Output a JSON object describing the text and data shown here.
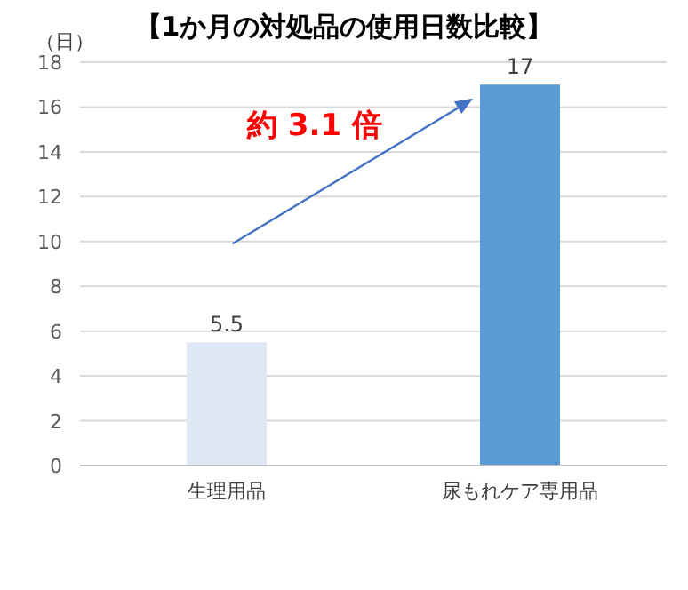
{
  "chart_data": {
    "type": "bar",
    "title": "【1か月の対処品の使用日数比較】",
    "ylabel": "（日）",
    "categories": [
      "生理用品",
      "尿もれケア専用品"
    ],
    "values": [
      5.5,
      17
    ],
    "colors": [
      "#dee8f4",
      "#5b9bd5"
    ],
    "ylim": [
      0,
      18
    ],
    "yticks": [
      0,
      2,
      4,
      6,
      8,
      10,
      12,
      14,
      16,
      18
    ],
    "grid": "y",
    "data_labels": true,
    "annotations": [
      "約 3.1 倍"
    ]
  }
}
